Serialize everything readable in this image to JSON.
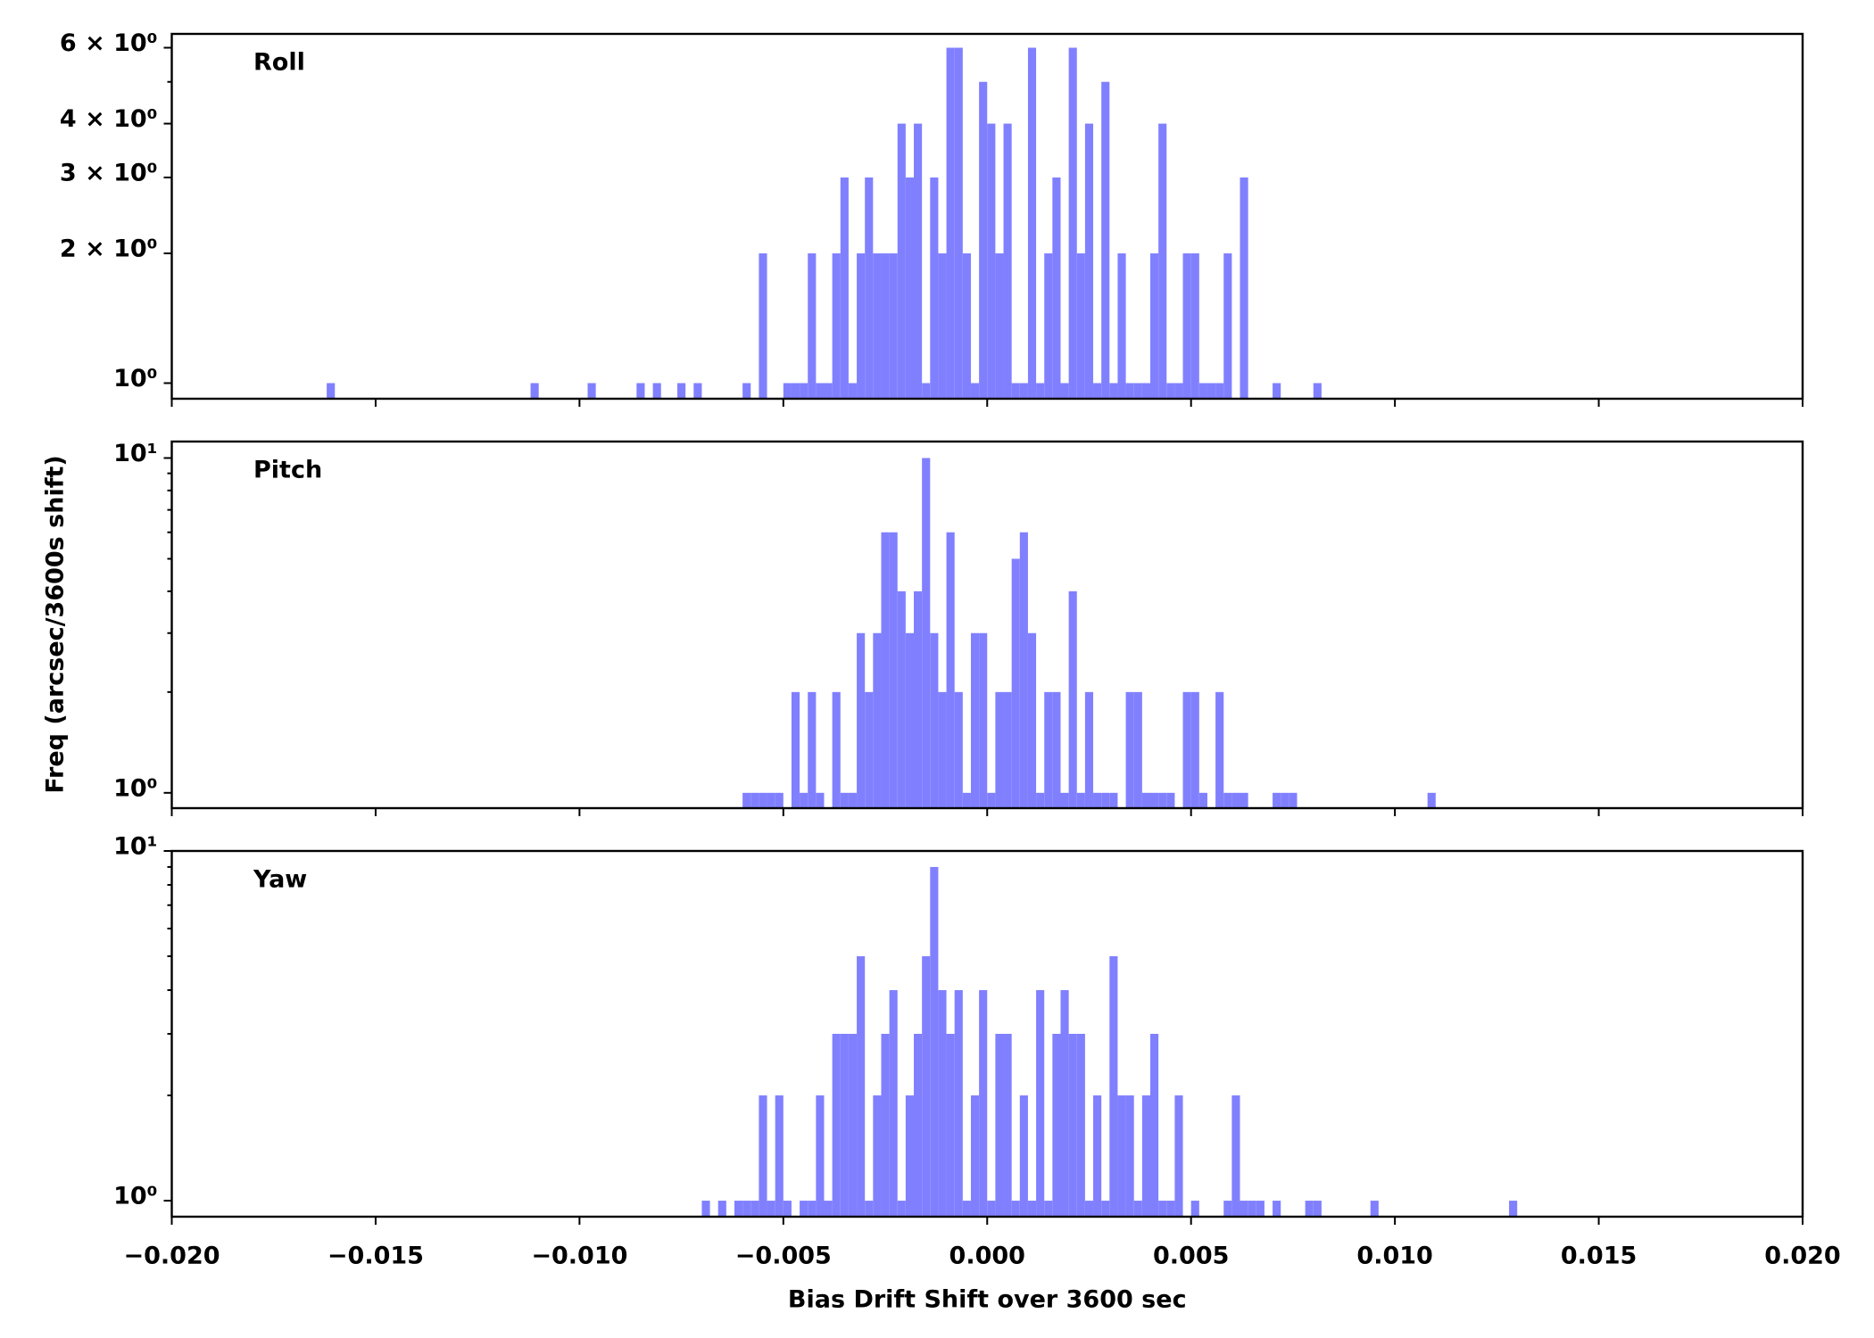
{
  "chart_data": [
    {
      "type": "histogram",
      "annotation": "Roll",
      "color": "#8080ff",
      "yscale": "log",
      "xlim": [
        -0.02,
        0.02
      ],
      "xticks": [
        {
          "value": -0.02,
          "label": "−0.020"
        },
        {
          "value": -0.015,
          "label": "−0.015"
        },
        {
          "value": -0.01,
          "label": "−0.010"
        },
        {
          "value": -0.005,
          "label": "−0.005"
        },
        {
          "value": 0,
          "label": "0.000"
        },
        {
          "value": 0.005,
          "label": "0.005"
        },
        {
          "value": 0.01,
          "label": "0.010"
        },
        {
          "value": 0.015,
          "label": "0.015"
        },
        {
          "value": 0.02,
          "label": "0.020"
        }
      ],
      "ylim": [
        0.92,
        6.46
      ],
      "yticks": [
        {
          "value": 1,
          "label": "10⁰"
        },
        {
          "value": 2,
          "label": "2 × 10⁰"
        },
        {
          "value": 3,
          "label": "3 × 10⁰"
        },
        {
          "value": 4,
          "label": "4 × 10⁰"
        },
        {
          "value": 6,
          "label": "6 × 10⁰"
        }
      ],
      "yminorticks": [
        5
      ],
      "bins": [
        -0.0162,
        -0.016,
        -0.0158,
        -0.0156,
        -0.0154,
        -0.0152,
        -0.015,
        -0.0148,
        -0.0146,
        -0.0144,
        -0.0142,
        -0.014,
        -0.0138,
        -0.0136,
        -0.0134,
        -0.0132,
        -0.013,
        -0.0128,
        -0.0126,
        -0.0124,
        -0.0122,
        -0.012,
        -0.0118,
        -0.0116,
        -0.0114,
        -0.0112,
        -0.011,
        -0.0108,
        -0.0106,
        -0.0104,
        -0.0102,
        -0.01,
        -0.0098,
        -0.0096,
        -0.0094,
        -0.0092,
        -0.009,
        -0.0088,
        -0.0086,
        -0.0084,
        -0.0082,
        -0.008,
        -0.0078,
        -0.0076,
        -0.0074,
        -0.0072,
        -0.007,
        -0.0068,
        -0.0066,
        -0.0064,
        -0.0062,
        -0.006,
        -0.0058,
        -0.0056,
        -0.0054,
        -0.0052,
        -0.005,
        -0.0048,
        -0.0046,
        -0.0044,
        -0.0042,
        -0.004,
        -0.0038,
        -0.0036,
        -0.0034,
        -0.0032,
        -0.003,
        -0.0028,
        -0.0026,
        -0.0024,
        -0.0022,
        -0.002,
        -0.0018,
        -0.0016,
        -0.0014,
        -0.0012,
        -0.001,
        -0.0008,
        -0.0006,
        -0.0004,
        -0.0002,
        0,
        0.0002,
        0.0004,
        0.0006,
        0.0008,
        0.001,
        0.0012,
        0.0014,
        0.0016,
        0.0018,
        0.002,
        0.0022,
        0.0024,
        0.0026,
        0.0028,
        0.003,
        0.0032,
        0.0034,
        0.0036,
        0.0038,
        0.004,
        0.0042,
        0.0044,
        0.0046,
        0.0048,
        0.005,
        0.0052,
        0.0054,
        0.0056,
        0.0058,
        0.006,
        0.0062,
        0.0064,
        0.0066,
        0.0068,
        0.007,
        0.0072,
        0.0074,
        0.0076,
        0.0078,
        0.008,
        0.0082
      ],
      "values": [
        1,
        0,
        0,
        0,
        0,
        0,
        0,
        0,
        0,
        0,
        0,
        0,
        0,
        0,
        0,
        0,
        0,
        0,
        0,
        0,
        0,
        0,
        0,
        0,
        0,
        1,
        0,
        0,
        0,
        0,
        0,
        0,
        1,
        0,
        0,
        0,
        0,
        0,
        1,
        0,
        1,
        0,
        0,
        1,
        0,
        1,
        0,
        0,
        0,
        0,
        0,
        1,
        0,
        2,
        0,
        0,
        1,
        1,
        1,
        2,
        1,
        1,
        2,
        3,
        1,
        2,
        3,
        2,
        2,
        2,
        4,
        3,
        4,
        1,
        3,
        2,
        6,
        6,
        2,
        1,
        5,
        4,
        2,
        4,
        1,
        1,
        6,
        1,
        2,
        3,
        1,
        6,
        2,
        4,
        1,
        5,
        1,
        2,
        1,
        1,
        1,
        2,
        4,
        1,
        1,
        2,
        2,
        1,
        1,
        1,
        2,
        0,
        3,
        0,
        0,
        0,
        1,
        0,
        0,
        0,
        0,
        1
      ]
    },
    {
      "type": "histogram",
      "annotation": "Pitch",
      "color": "#8080ff",
      "yscale": "log",
      "ylabel": "Freq (arcsec/3600s shift)",
      "xlim": [
        -0.02,
        0.02
      ],
      "xticks": [
        {
          "value": -0.02,
          "label": "−0.020"
        },
        {
          "value": -0.015,
          "label": "−0.015"
        },
        {
          "value": -0.01,
          "label": "−0.010"
        },
        {
          "value": -0.005,
          "label": "−0.005"
        },
        {
          "value": 0,
          "label": "0.000"
        },
        {
          "value": 0.005,
          "label": "0.005"
        },
        {
          "value": 0.01,
          "label": "0.010"
        },
        {
          "value": 0.015,
          "label": "0.015"
        },
        {
          "value": 0.02,
          "label": "0.020"
        }
      ],
      "ylim": [
        0.9,
        11.2
      ],
      "yticks": [
        {
          "value": 1,
          "label": "10⁰"
        },
        {
          "value": 10,
          "label": "10¹"
        }
      ],
      "yminorticks": [
        2,
        3,
        4,
        5,
        6,
        7,
        8,
        9
      ],
      "bins": [
        -0.006,
        -0.0058,
        -0.0056,
        -0.0054,
        -0.0052,
        -0.005,
        -0.0048,
        -0.0046,
        -0.0044,
        -0.0042,
        -0.004,
        -0.0038,
        -0.0036,
        -0.0034,
        -0.0032,
        -0.003,
        -0.0028,
        -0.0026,
        -0.0024,
        -0.0022,
        -0.002,
        -0.0018,
        -0.0016,
        -0.0014,
        -0.0012,
        -0.001,
        -0.0008,
        -0.0006,
        -0.0004,
        -0.0002,
        0,
        0.0002,
        0.0004,
        0.0006,
        0.0008,
        0.001,
        0.0012,
        0.0014,
        0.0016,
        0.0018,
        0.002,
        0.0022,
        0.0024,
        0.0026,
        0.0028,
        0.003,
        0.0032,
        0.0034,
        0.0036,
        0.0038,
        0.004,
        0.0042,
        0.0044,
        0.0046,
        0.0048,
        0.005,
        0.0052,
        0.0054,
        0.0056,
        0.0058,
        0.006,
        0.0062,
        0.0064,
        0.0066,
        0.0068,
        0.007,
        0.0072,
        0.0074,
        0.0076,
        0.0078,
        0.008,
        0.0082,
        0.0084,
        0.0086,
        0.0088,
        0.009,
        0.0092,
        0.0094,
        0.0096,
        0.0098,
        0.01,
        0.0102,
        0.0104,
        0.0106,
        0.0108,
        0.011
      ],
      "values": [
        1,
        1,
        1,
        1,
        1,
        0,
        2,
        1,
        2,
        1,
        0,
        2,
        1,
        1,
        3,
        2,
        3,
        6,
        6,
        4,
        3,
        4,
        10,
        3,
        2,
        6,
        2,
        1,
        3,
        3,
        1,
        2,
        2,
        5,
        6,
        3,
        1,
        2,
        2,
        1,
        4,
        1,
        2,
        1,
        1,
        1,
        0,
        2,
        2,
        1,
        1,
        1,
        1,
        0,
        2,
        2,
        1,
        0,
        2,
        1,
        1,
        1,
        0,
        0,
        0,
        1,
        1,
        1,
        0,
        0,
        0,
        0,
        0,
        0,
        0,
        0,
        0,
        0,
        0,
        0,
        0,
        0,
        0,
        0,
        1
      ]
    },
    {
      "type": "histogram",
      "annotation": "Yaw",
      "color": "#8080ff",
      "yscale": "log",
      "xlabel": "Bias Drift Shift over 3600 sec",
      "xlim": [
        -0.02,
        0.02
      ],
      "xticks": [
        {
          "value": -0.02,
          "label": "−0.020"
        },
        {
          "value": -0.015,
          "label": "−0.015"
        },
        {
          "value": -0.01,
          "label": "−0.010"
        },
        {
          "value": -0.005,
          "label": "−0.005"
        },
        {
          "value": 0,
          "label": "0.000"
        },
        {
          "value": 0.005,
          "label": "0.005"
        },
        {
          "value": 0.01,
          "label": "0.010"
        },
        {
          "value": 0.015,
          "label": "0.015"
        },
        {
          "value": 0.02,
          "label": "0.020"
        }
      ],
      "ylim": [
        0.9,
        10
      ],
      "yticks": [
        {
          "value": 1,
          "label": "10⁰"
        },
        {
          "value": 10,
          "label": "10¹"
        }
      ],
      "yminorticks": [
        2,
        3,
        4,
        5,
        6,
        7,
        8,
        9
      ],
      "bins": [
        -0.007,
        -0.0068,
        -0.0066,
        -0.0064,
        -0.0062,
        -0.006,
        -0.0058,
        -0.0056,
        -0.0054,
        -0.0052,
        -0.005,
        -0.0048,
        -0.0046,
        -0.0044,
        -0.0042,
        -0.004,
        -0.0038,
        -0.0036,
        -0.0034,
        -0.0032,
        -0.003,
        -0.0028,
        -0.0026,
        -0.0024,
        -0.0022,
        -0.002,
        -0.0018,
        -0.0016,
        -0.0014,
        -0.0012,
        -0.001,
        -0.0008,
        -0.0006,
        -0.0004,
        -0.0002,
        0,
        0.0002,
        0.0004,
        0.0006,
        0.0008,
        0.001,
        0.0012,
        0.0014,
        0.0016,
        0.0018,
        0.002,
        0.0022,
        0.0024,
        0.0026,
        0.0028,
        0.003,
        0.0032,
        0.0034,
        0.0036,
        0.0038,
        0.004,
        0.0042,
        0.0044,
        0.0046,
        0.0048,
        0.005,
        0.0052,
        0.0054,
        0.0056,
        0.0058,
        0.006,
        0.0062,
        0.0064,
        0.0066,
        0.0068,
        0.007,
        0.0072,
        0.0074,
        0.0076,
        0.0078,
        0.008,
        0.0082,
        0.0084,
        0.0086,
        0.0088,
        0.009,
        0.0092,
        0.0094,
        0.0096,
        0.0098,
        0.01,
        0.0102,
        0.0104,
        0.0106,
        0.0108,
        0.011,
        0.0112,
        0.0114,
        0.0116,
        0.0118,
        0.012,
        0.0122,
        0.0124,
        0.0126,
        0.0128,
        0.013,
        0.0132
      ],
      "values": [
        1,
        0,
        1,
        0,
        1,
        1,
        1,
        2,
        1,
        2,
        1,
        0,
        1,
        1,
        2,
        1,
        3,
        3,
        3,
        5,
        1,
        2,
        3,
        4,
        1,
        2,
        3,
        5,
        9,
        4,
        3,
        4,
        1,
        2,
        4,
        1,
        3,
        3,
        1,
        2,
        1,
        4,
        1,
        3,
        4,
        3,
        3,
        1,
        2,
        1,
        5,
        2,
        2,
        1,
        2,
        3,
        1,
        1,
        2,
        0,
        1,
        0,
        0,
        0,
        1,
        2,
        1,
        1,
        1,
        0,
        1,
        0,
        0,
        0,
        1,
        1,
        0,
        0,
        0,
        0,
        0,
        0,
        1,
        0,
        0,
        0,
        0,
        0,
        0,
        0,
        0,
        0,
        0,
        0,
        0,
        0,
        0,
        0,
        0,
        1,
        0
      ]
    }
  ]
}
